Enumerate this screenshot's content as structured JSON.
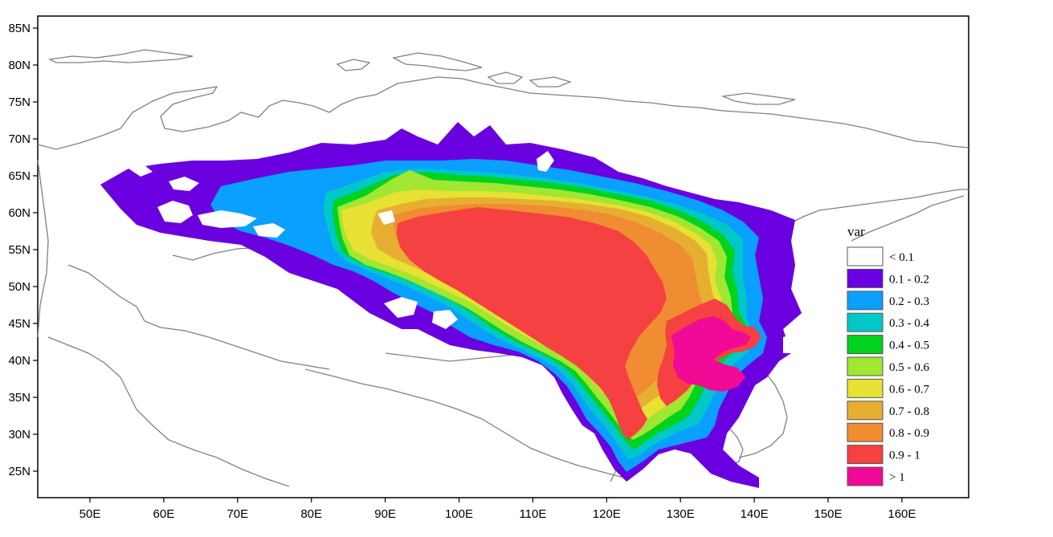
{
  "map": {
    "legend": {
      "title": "var",
      "items": [
        {
          "label": "< 0.1",
          "color": "#ffffff"
        },
        {
          "label": "0.1 - 0.2",
          "color": "#6a00e0"
        },
        {
          "label": "0.2 - 0.3",
          "color": "#0aa0ff"
        },
        {
          "label": "0.3 - 0.4",
          "color": "#00c8c8"
        },
        {
          "label": "0.4 - 0.5",
          "color": "#00d21e"
        },
        {
          "label": "0.5 - 0.6",
          "color": "#a0e632"
        },
        {
          "label": "0.6 - 0.7",
          "color": "#e6e132"
        },
        {
          "label": "0.7 - 0.8",
          "color": "#e6af32"
        },
        {
          "label": "0.8 - 0.9",
          "color": "#f08c32"
        },
        {
          "label": "0.9 - 1",
          "color": "#f54141"
        },
        {
          "label": "> 1",
          "color": "#f00a96"
        }
      ]
    },
    "y_ticks": [
      "85N",
      "80N",
      "75N",
      "70N",
      "65N",
      "60N",
      "55N",
      "50N",
      "45N",
      "40N",
      "35N",
      "30N",
      "25N"
    ],
    "x_ticks": [
      "50E",
      "60E",
      "70E",
      "80E",
      "90E",
      "100E",
      "110E",
      "120E",
      "130E",
      "140E",
      "150E",
      "160E"
    ],
    "coastline_color": "#808080"
  }
}
